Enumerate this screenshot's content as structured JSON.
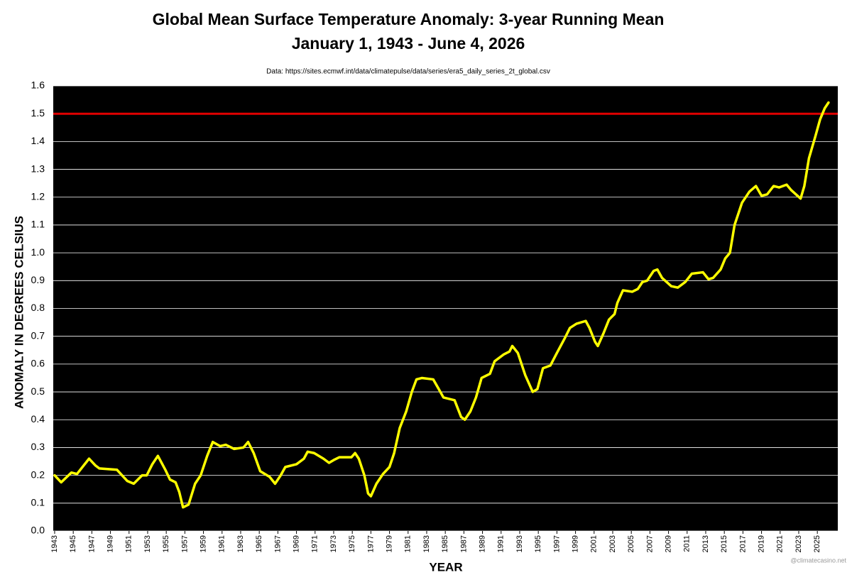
{
  "chart_data": {
    "type": "line",
    "title": "Global Mean Surface Temperature Anomaly: 3-year Running Mean",
    "subtitle": "January 1, 1943 - June 4, 2026",
    "source": "Data: https://sites.ecmwf.int/data/climatepulse/data/series/era5_daily_series_2t_global.csv",
    "x_label": "YEAR",
    "y_label": "ANOMALY IN DEGREES CELSIUS",
    "watermark": "@climatecasino.net",
    "background": "#000000",
    "grid": true,
    "grid_color": "#ffffff",
    "threshold": 1.5,
    "threshold_color": "#e00000",
    "xlim": [
      1942.85,
      2027.2
    ],
    "ylim": [
      0,
      1.6
    ],
    "yticks": [
      {
        "value": 0,
        "label": "0.0"
      },
      0.1,
      0.2,
      0.3,
      0.4,
      0.5,
      0.6,
      0.7,
      0.8,
      0.9,
      {
        "value": 1,
        "label": "1.0"
      },
      1.1,
      1.2,
      1.3,
      1.4,
      1.5,
      1.6
    ],
    "xticks": [
      1943,
      1945,
      1947,
      1949,
      1951,
      1953,
      1955,
      1957,
      1959,
      1961,
      1963,
      1965,
      1967,
      1969,
      1971,
      1973,
      1975,
      1977,
      1979,
      1981,
      1983,
      1985,
      1987,
      1989,
      1991,
      1993,
      1995,
      1997,
      1999,
      2001,
      2003,
      2005,
      2007,
      2009,
      2011,
      2013,
      2015,
      2017,
      2019,
      2021,
      2023,
      2025
    ],
    "x": [
      1943.0,
      1943.7,
      1944.8,
      1945.4,
      1946.7,
      1947.4,
      1947.8,
      1949.7,
      1950.8,
      1951.5,
      1952.4,
      1952.9,
      1953.5,
      1954.1,
      1954.9,
      1955.4,
      1956.0,
      1956.4,
      1956.8,
      1957.4,
      1958.1,
      1958.7,
      1959.4,
      1960.0,
      1960.8,
      1961.4,
      1962.3,
      1963.3,
      1963.8,
      1964.4,
      1965.1,
      1966.1,
      1966.7,
      1967.3,
      1967.8,
      1969.0,
      1969.8,
      1970.2,
      1970.9,
      1971.9,
      1972.5,
      1973.0,
      1973.6,
      1974.9,
      1975.3,
      1975.7,
      1976.3,
      1976.7,
      1977.0,
      1977.6,
      1978.3,
      1979.0,
      1979.5,
      1980.1,
      1980.8,
      1981.4,
      1981.9,
      1982.5,
      1983.7,
      1984.3,
      1984.8,
      1986.0,
      1986.7,
      1987.1,
      1987.7,
      1988.3,
      1988.9,
      1989.8,
      1990.3,
      1991.3,
      1991.9,
      1992.2,
      1992.8,
      1993.6,
      1994.4,
      1994.9,
      1995.5,
      1996.3,
      1997.0,
      1997.8,
      1998.4,
      1999.1,
      2000.1,
      2000.5,
      2001.1,
      2001.4,
      2002.0,
      2002.6,
      2003.2,
      2003.5,
      2004.1,
      2005.1,
      2005.7,
      2006.2,
      2006.7,
      2007.4,
      2007.8,
      2008.3,
      2009.3,
      2010.0,
      2010.8,
      2011.5,
      2012.7,
      2013.3,
      2013.8,
      2014.6,
      2015.1,
      2015.6,
      2016.1,
      2016.9,
      2017.7,
      2018.4,
      2019.0,
      2019.6,
      2020.3,
      2020.9,
      2021.7,
      2022.2,
      2023.2,
      2023.6,
      2024.1,
      2024.8,
      2025.3,
      2025.8,
      2026.2
    ],
    "series": [
      {
        "color": "#ffff00",
        "values": [
          0.2,
          0.175,
          0.21,
          0.205,
          0.26,
          0.235,
          0.225,
          0.22,
          0.18,
          0.17,
          0.2,
          0.2,
          0.24,
          0.27,
          0.22,
          0.185,
          0.175,
          0.14,
          0.085,
          0.095,
          0.17,
          0.2,
          0.27,
          0.32,
          0.305,
          0.31,
          0.295,
          0.3,
          0.32,
          0.28,
          0.215,
          0.195,
          0.17,
          0.2,
          0.23,
          0.24,
          0.26,
          0.285,
          0.28,
          0.26,
          0.245,
          0.255,
          0.265,
          0.265,
          0.28,
          0.26,
          0.2,
          0.135,
          0.125,
          0.17,
          0.205,
          0.23,
          0.28,
          0.37,
          0.43,
          0.5,
          0.545,
          0.55,
          0.545,
          0.51,
          0.48,
          0.47,
          0.41,
          0.4,
          0.43,
          0.48,
          0.55,
          0.565,
          0.61,
          0.635,
          0.645,
          0.665,
          0.64,
          0.56,
          0.5,
          0.51,
          0.585,
          0.595,
          0.64,
          0.69,
          0.73,
          0.745,
          0.755,
          0.73,
          0.68,
          0.665,
          0.71,
          0.76,
          0.78,
          0.82,
          0.865,
          0.86,
          0.87,
          0.895,
          0.9,
          0.935,
          0.94,
          0.91,
          0.88,
          0.875,
          0.895,
          0.925,
          0.93,
          0.905,
          0.91,
          0.94,
          0.98,
          1.0,
          1.1,
          1.18,
          1.22,
          1.24,
          1.205,
          1.21,
          1.24,
          1.235,
          1.245,
          1.225,
          1.195,
          1.24,
          1.34,
          1.42,
          1.48,
          1.52,
          1.54
        ]
      }
    ]
  }
}
